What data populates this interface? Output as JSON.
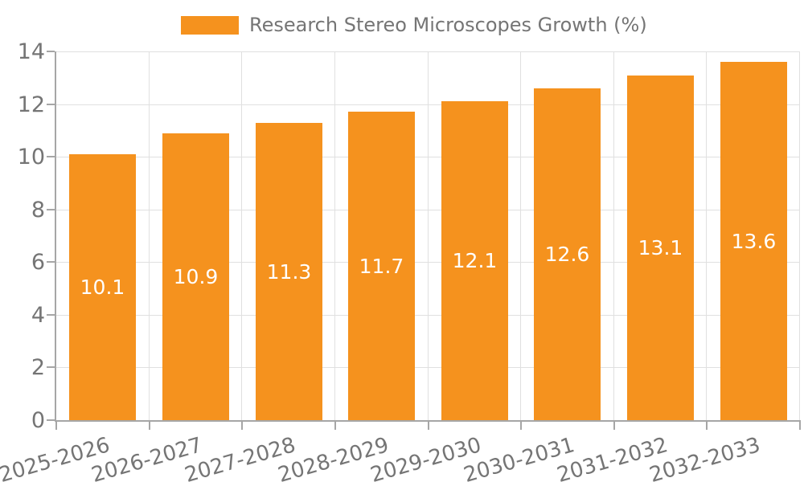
{
  "chart_data": {
    "type": "bar",
    "title": "",
    "legend_position": "top-center",
    "grid": true,
    "categories": [
      "2025-2026",
      "2026-2027",
      "2027-2028",
      "2028-2029",
      "2029-2030",
      "2030-2031",
      "2031-2032",
      "2032-2033"
    ],
    "series": [
      {
        "name": "Research Stereo Microscopes Growth (%)",
        "values": [
          10.1,
          10.9,
          11.3,
          11.7,
          12.1,
          12.6,
          13.1,
          13.6
        ]
      }
    ],
    "xlabel": "",
    "ylabel": "",
    "ylim": [
      0,
      14
    ],
    "ytick_step": 2,
    "ytick_labels": [
      "0",
      "2",
      "4",
      "6",
      "8",
      "10",
      "12",
      "14"
    ],
    "bar_value_labels": [
      "10.1",
      "10.9",
      "11.3",
      "11.7",
      "12.1",
      "12.6",
      "13.1",
      "13.6"
    ],
    "colors": {
      "bar": "#F5921E",
      "grid": "#E0E0E0",
      "axis": "#A6A6A6",
      "text": "#757575",
      "bar_label": "#FFFFFF"
    }
  }
}
